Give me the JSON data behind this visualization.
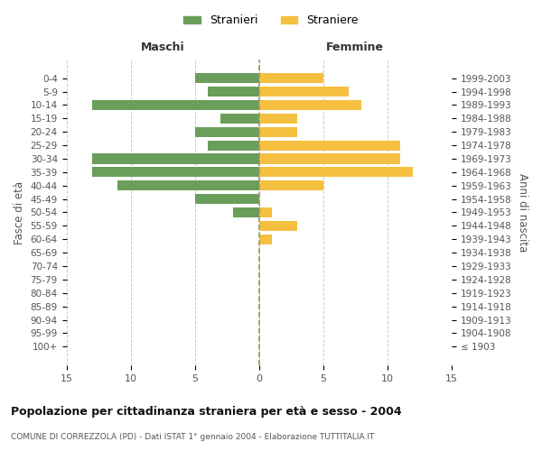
{
  "age_groups": [
    "100+",
    "95-99",
    "90-94",
    "85-89",
    "80-84",
    "75-79",
    "70-74",
    "65-69",
    "60-64",
    "55-59",
    "50-54",
    "45-49",
    "40-44",
    "35-39",
    "30-34",
    "25-29",
    "20-24",
    "15-19",
    "10-14",
    "5-9",
    "0-4"
  ],
  "birth_years": [
    "≤ 1903",
    "1904-1908",
    "1909-1913",
    "1914-1918",
    "1919-1923",
    "1924-1928",
    "1929-1933",
    "1934-1938",
    "1939-1943",
    "1944-1948",
    "1949-1953",
    "1954-1958",
    "1959-1963",
    "1964-1968",
    "1969-1973",
    "1974-1978",
    "1979-1983",
    "1984-1988",
    "1989-1993",
    "1994-1998",
    "1999-2003"
  ],
  "maschi": [
    0,
    0,
    0,
    0,
    0,
    0,
    0,
    0,
    0,
    0,
    2,
    5,
    11,
    13,
    13,
    4,
    5,
    3,
    13,
    4,
    5
  ],
  "femmine": [
    0,
    0,
    0,
    0,
    0,
    0,
    0,
    0,
    1,
    3,
    1,
    0,
    5,
    12,
    11,
    11,
    3,
    3,
    8,
    7,
    5
  ],
  "maschi_color": "#6a9e5b",
  "femmine_color": "#f5c040",
  "title": "Popolazione per cittadinanza straniera per età e sesso - 2004",
  "subtitle": "COMUNE DI CORREZZOLA (PD) - Dati ISTAT 1° gennaio 2004 - Elaborazione TUTTITALIA.IT",
  "xlabel_left": "Maschi",
  "xlabel_right": "Femmine",
  "ylabel_left": "Fasce di età",
  "ylabel_right": "Anni di nascita",
  "xlim": 15,
  "legend_stranieri": "Stranieri",
  "legend_straniere": "Straniere",
  "background_color": "#ffffff",
  "grid_color": "#cccccc"
}
